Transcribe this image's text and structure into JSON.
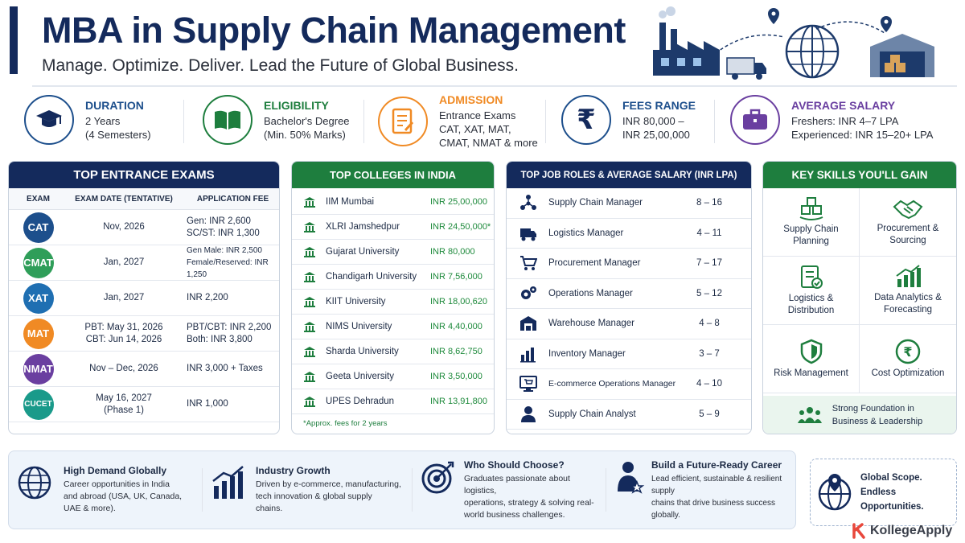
{
  "header": {
    "title": "MBA in Supply Chain Management",
    "subtitle": "Manage. Optimize. Deliver. Lead the Future of Global Business."
  },
  "info": {
    "duration": {
      "title": "DURATION",
      "line1": "2 Years",
      "line2": "(4 Semesters)",
      "icon": "graduation-cap-icon"
    },
    "eligibility": {
      "title": "ELIGIBILITY",
      "line1": "Bachelor's Degree",
      "line2": "(Min. 50% Marks)",
      "icon": "book-icon"
    },
    "admission": {
      "title": "ADMISSION",
      "line1": "Entrance Exams",
      "line2": "CAT, XAT, MAT,",
      "line3": "CMAT, NMAT & more",
      "icon": "application-form-icon"
    },
    "fees": {
      "title": "FEES RANGE",
      "line1": "INR 80,000 –",
      "line2": "INR 25,00,000",
      "icon": "rupee-icon"
    },
    "salary": {
      "title": "AVERAGE SALARY",
      "line1": "Freshers: INR 4–7 LPA",
      "line2": "Experienced: INR 15–20+ LPA",
      "icon": "briefcase-icon"
    }
  },
  "exams": {
    "title": "TOP ENTRANCE EXAMS",
    "headers": {
      "exam": "EXAM",
      "date": "EXAM DATE (TENTATIVE)",
      "fee": "APPLICATION FEE"
    },
    "rows": [
      {
        "name": "CAT",
        "color": "#1d4f8c",
        "date1": "Nov, 2026",
        "date2": "",
        "fee1": "Gen: INR 2,600",
        "fee2": "SC/ST: INR 1,300"
      },
      {
        "name": "CMAT",
        "color": "#2f9e59",
        "date1": "Jan, 2027",
        "date2": "",
        "fee1": "Gen Male: INR 2,500",
        "fee2": "Female/Reserved: INR 1,250"
      },
      {
        "name": "XAT",
        "color": "#1f6fb2",
        "date1": "Jan, 2027",
        "date2": "",
        "fee1": "INR 2,200",
        "fee2": ""
      },
      {
        "name": "MAT",
        "color": "#f08a24",
        "date1": "PBT: May 31, 2026",
        "date2": "CBT: Jun 14, 2026",
        "fee1": "PBT/CBT: INR 2,200",
        "fee2": "Both: INR 3,800"
      },
      {
        "name": "NMAT",
        "color": "#6a3fa0",
        "date1": "Nov – Dec, 2026",
        "date2": "",
        "fee1": "INR 3,000 + Taxes",
        "fee2": ""
      },
      {
        "name": "CUCET",
        "color": "#1a9a8a",
        "date1": "May 16, 2027",
        "date2": "(Phase 1)",
        "fee1": "INR 1,000",
        "fee2": ""
      }
    ]
  },
  "colleges": {
    "title": "TOP COLLEGES IN INDIA",
    "rows": [
      {
        "name": "IIM Mumbai",
        "fee": "INR 25,00,000"
      },
      {
        "name": "XLRI Jamshedpur",
        "fee": "INR 24,50,000*"
      },
      {
        "name": "Gujarat University",
        "fee": "INR 80,000"
      },
      {
        "name": "Chandigarh University",
        "fee": "INR 7,56,000"
      },
      {
        "name": "KIIT University",
        "fee": "INR 18,00,620"
      },
      {
        "name": "NIMS University",
        "fee": "INR 4,40,000"
      },
      {
        "name": "Sharda University",
        "fee": "INR 8,62,750"
      },
      {
        "name": "Geeta University",
        "fee": "INR 3,50,000"
      },
      {
        "name": "UPES Dehradun",
        "fee": "INR 13,91,800"
      }
    ],
    "note": "*Approx. fees for 2 years"
  },
  "jobs": {
    "title": "TOP JOB ROLES & AVERAGE SALARY (INR LPA)",
    "rows": [
      {
        "name": "Supply Chain Manager",
        "salary": "8 – 16",
        "icon": "network-icon"
      },
      {
        "name": "Logistics Manager",
        "salary": "4 – 11",
        "icon": "truck-icon"
      },
      {
        "name": "Procurement Manager",
        "salary": "7 – 17",
        "icon": "cart-icon"
      },
      {
        "name": "Operations Manager",
        "salary": "5 – 12",
        "icon": "gears-icon"
      },
      {
        "name": "Warehouse Manager",
        "salary": "4 – 8",
        "icon": "warehouse-icon"
      },
      {
        "name": "Inventory Manager",
        "salary": "3 – 7",
        "icon": "bar-chart-icon"
      },
      {
        "name": "E-commerce Operations Manager",
        "salary": "4 – 10",
        "icon": "monitor-cart-icon"
      },
      {
        "name": "Supply Chain Analyst",
        "salary": "5 – 9",
        "icon": "person-icon"
      }
    ]
  },
  "skills": {
    "title": "KEY SKILLS YOU'LL GAIN",
    "items": [
      {
        "line1": "Supply Chain",
        "line2": "Planning"
      },
      {
        "line1": "Procurement &",
        "line2": "Sourcing"
      },
      {
        "line1": "Logistics &",
        "line2": "Distribution"
      },
      {
        "line1": "Data Analytics &",
        "line2": "Forecasting"
      },
      {
        "line1": "Risk Management",
        "line2": ""
      },
      {
        "line1": "Cost Optimization",
        "line2": ""
      }
    ],
    "foundation1": "Strong Foundation in",
    "foundation2": "Business & Leadership"
  },
  "bottom": {
    "s1": {
      "title": "High Demand Globally",
      "l1": "Career opportunities in India",
      "l2": "and abroad (USA, UK, Canada,",
      "l3": "UAE & more)."
    },
    "s2": {
      "title": "Industry Growth",
      "l1": "Driven by e-commerce, manufacturing,",
      "l2": "tech innovation & global supply",
      "l3": "chains."
    },
    "s3": {
      "title": "Who Should Choose?",
      "l1": "Graduates passionate about logistics,",
      "l2": "operations, strategy & solving real-",
      "l3": "world business challenges."
    },
    "s4": {
      "title": "Build a Future-Ready Career",
      "l1": "Lead efficient, sustainable & resilient supply",
      "l2": "chains that drive business success",
      "l3": "globally."
    }
  },
  "scope": {
    "line1": "Global Scope.",
    "line2": "Endless Opportunities."
  },
  "brand": {
    "name": "KollegeApply"
  },
  "colors": {
    "navy": "#142a5c",
    "green": "#1e7e3e",
    "orange": "#f08a24",
    "purple": "#6a3fa0"
  }
}
